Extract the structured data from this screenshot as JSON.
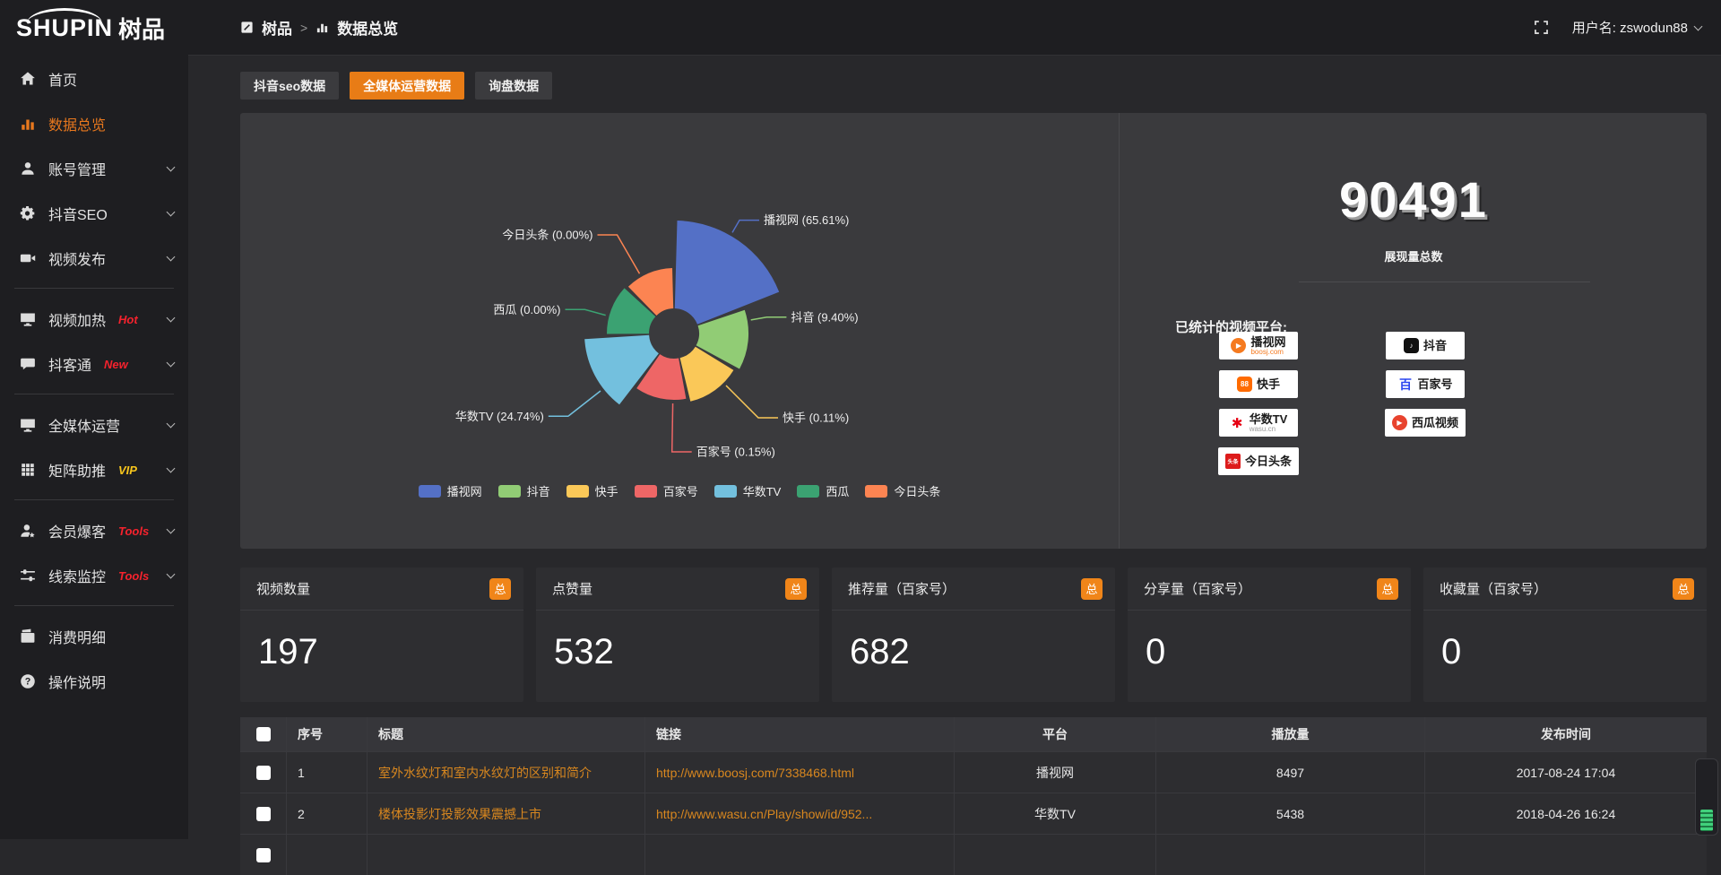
{
  "topbar": {
    "logo_en": "SHUPIN",
    "logo_cn": "树品",
    "breadcrumb": [
      {
        "label": "树品"
      },
      {
        "label": "数据总览"
      }
    ],
    "username": "用户名: zswodun88"
  },
  "sidebar": {
    "items": [
      {
        "label": "首页",
        "icon": "home",
        "active": false,
        "chevron": false,
        "badge": "",
        "badge_color": "",
        "divider_after": false
      },
      {
        "label": "数据总览",
        "icon": "bar-chart",
        "active": true,
        "chevron": false,
        "badge": "",
        "badge_color": "",
        "divider_after": false
      },
      {
        "label": "账号管理",
        "icon": "user",
        "active": false,
        "chevron": true,
        "badge": "",
        "badge_color": "",
        "divider_after": false
      },
      {
        "label": "抖音SEO",
        "icon": "gear",
        "active": false,
        "chevron": true,
        "badge": "",
        "badge_color": "",
        "divider_after": false
      },
      {
        "label": "视频发布",
        "icon": "video-camera",
        "active": false,
        "chevron": true,
        "badge": "",
        "badge_color": "",
        "divider_after": true
      },
      {
        "label": "视频加热",
        "icon": "screen-play",
        "active": false,
        "chevron": true,
        "badge": "Hot",
        "badge_color": "#f5222d",
        "divider_after": false
      },
      {
        "label": "抖客通",
        "icon": "chat",
        "active": false,
        "chevron": true,
        "badge": "New",
        "badge_color": "#f5222d",
        "divider_after": true
      },
      {
        "label": "全媒体运营",
        "icon": "monitor",
        "active": false,
        "chevron": true,
        "badge": "",
        "badge_color": "",
        "divider_after": false
      },
      {
        "label": "矩阵助推",
        "icon": "grid",
        "active": false,
        "chevron": true,
        "badge": "VIP",
        "badge_color": "#f7c51c",
        "divider_after": true
      },
      {
        "label": "会员爆客",
        "icon": "member",
        "active": false,
        "chevron": true,
        "badge": "Tools",
        "badge_color": "#f5222d",
        "divider_after": false
      },
      {
        "label": "线索监控",
        "icon": "sliders",
        "active": false,
        "chevron": true,
        "badge": "Tools",
        "badge_color": "#f5222d",
        "divider_after": true
      },
      {
        "label": "消费明细",
        "icon": "wallet",
        "active": false,
        "chevron": false,
        "badge": "",
        "badge_color": "",
        "divider_after": false
      },
      {
        "label": "操作说明",
        "icon": "question",
        "active": false,
        "chevron": false,
        "badge": "",
        "badge_color": "",
        "divider_after": false
      }
    ]
  },
  "tabs": [
    {
      "label": "抖音seo数据",
      "active": false
    },
    {
      "label": "全媒体运营数据",
      "active": true
    },
    {
      "label": "询盘数据",
      "active": false
    }
  ],
  "chart_data": {
    "type": "pie",
    "variant": "nightingale-rose",
    "unit": "%",
    "slices": [
      {
        "name": "播视网",
        "value": 65.61,
        "label": "播视网 (65.61%)",
        "color": "#5470c6"
      },
      {
        "name": "抖音",
        "value": 9.4,
        "label": "抖音 (9.40%)",
        "color": "#91cc75"
      },
      {
        "name": "快手",
        "value": 0.11,
        "label": "快手 (0.11%)",
        "color": "#fac858"
      },
      {
        "name": "百家号",
        "value": 0.15,
        "label": "百家号 (0.15%)",
        "color": "#ee6666"
      },
      {
        "name": "华数TV",
        "value": 24.74,
        "label": "华数TV (24.74%)",
        "color": "#73c0de"
      },
      {
        "name": "西瓜",
        "value": 0.0,
        "label": "西瓜 (0.00%)",
        "color": "#3ba272"
      },
      {
        "name": "今日头条",
        "value": 0.0,
        "label": "今日头条 (0.00%)",
        "color": "#fc8452"
      }
    ],
    "legend": [
      "播视网",
      "抖音",
      "快手",
      "百家号",
      "华数TV",
      "西瓜",
      "今日头条"
    ],
    "legend_position": "bottom"
  },
  "summary": {
    "total_value": "90491",
    "total_label": "展现量总数",
    "platforms_title": "已统计的视频平台:",
    "platforms_left": [
      {
        "name": "播视网",
        "sub": "boosj.com",
        "icon": "boosj",
        "sub_color": "#f57a1f"
      },
      {
        "name": "快手",
        "sub": "",
        "icon": "kuaishou",
        "sub_color": ""
      },
      {
        "name": "华数TV",
        "sub": "wasu.cn",
        "icon": "wasu",
        "sub_color": "#9a9a9a"
      },
      {
        "name": "今日头条",
        "sub": "",
        "icon": "toutiao",
        "sub_color": ""
      }
    ],
    "platforms_right": [
      {
        "name": "抖音",
        "sub": "",
        "icon": "douyin",
        "sub_color": ""
      },
      {
        "name": "百家号",
        "sub": "",
        "icon": "baijia",
        "sub_color": ""
      },
      {
        "name": "西瓜视频",
        "sub": "",
        "icon": "xigua",
        "sub_color": ""
      }
    ]
  },
  "stat_cards": [
    {
      "title": "视频数量",
      "badge": "总",
      "value": "197"
    },
    {
      "title": "点赞量",
      "badge": "总",
      "value": "532"
    },
    {
      "title": "推荐量（百家号）",
      "badge": "总",
      "value": "682"
    },
    {
      "title": "分享量（百家号）",
      "badge": "总",
      "value": "0"
    },
    {
      "title": "收藏量（百家号）",
      "badge": "总",
      "value": "0"
    }
  ],
  "table": {
    "columns": [
      "",
      "序号",
      "标题",
      "链接",
      "平台",
      "播放量",
      "发布时间"
    ],
    "rows": [
      {
        "seq": "1",
        "title": "室外水纹灯和室内水纹灯的区别和简介",
        "link": "http://www.boosj.com/7338468.html",
        "platform": "播视网",
        "views": "8497",
        "time": "2017-08-24 17:04"
      },
      {
        "seq": "2",
        "title": "楼体投影灯投影效果震撼上市",
        "link": "http://www.wasu.cn/Play/show/id/952...",
        "platform": "华数TV",
        "views": "5438",
        "time": "2018-04-26 16:24"
      },
      {
        "seq": "",
        "title": "",
        "link": "",
        "platform": "",
        "views": "",
        "time": ""
      }
    ]
  },
  "colors": {
    "accent_orange": "#e87c16",
    "badge_orange": "#f08519",
    "link_orange": "#d8871f",
    "hot_red": "#f5222d",
    "vip_yellow": "#f7c51c"
  }
}
